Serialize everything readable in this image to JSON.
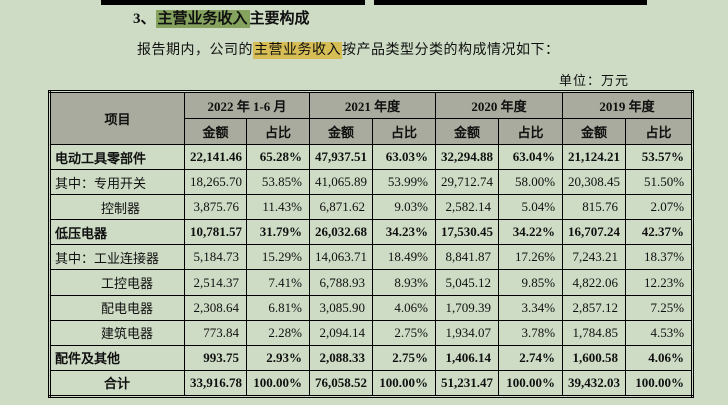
{
  "page": {
    "bg_color": "#cedcc5",
    "header_bg_color": "#a8ab9d",
    "green_highlight_color": "#85a35e",
    "yellow_highlight_color": "#d6bd55"
  },
  "heading": {
    "number": "3、",
    "highlight": "主营业务收入",
    "rest": "主要构成"
  },
  "intro": {
    "before": "报告期内，公司的",
    "highlight": "主营业务收入",
    "after": "按产品类型分类的构成情况如下："
  },
  "unit_label": "单位：万元",
  "table": {
    "header": {
      "item": "项目",
      "periods": [
        "2022 年 1-6 月",
        "2021 年度",
        "2020 年度",
        "2019 年度"
      ],
      "amount_label": "金额",
      "ratio_label": "占比"
    },
    "rows": [
      {
        "label": "电动工具零部件",
        "style": "bold",
        "indent": "none",
        "values": [
          "22,141.46",
          "65.28%",
          "47,937.51",
          "63.03%",
          "32,294.88",
          "63.04%",
          "21,124.21",
          "53.57%"
        ]
      },
      {
        "label": "其中：专用开关",
        "style": "plain",
        "indent": "none",
        "values": [
          "18,265.70",
          "53.85%",
          "41,065.89",
          "53.99%",
          "29,712.74",
          "58.00%",
          "20,308.45",
          "51.50%"
        ]
      },
      {
        "label": "控制器",
        "style": "plain",
        "indent": "sub2",
        "values": [
          "3,875.76",
          "11.43%",
          "6,871.62",
          "9.03%",
          "2,582.14",
          "5.04%",
          "815.76",
          "2.07%"
        ]
      },
      {
        "label": "低压电器",
        "style": "bold",
        "indent": "none",
        "values": [
          "10,781.57",
          "31.79%",
          "26,032.68",
          "34.23%",
          "17,530.45",
          "34.22%",
          "16,707.24",
          "42.37%"
        ]
      },
      {
        "label": "其中：工业连接器",
        "style": "plain",
        "indent": "none",
        "values": [
          "5,184.73",
          "15.29%",
          "14,063.71",
          "18.49%",
          "8,841.87",
          "17.26%",
          "7,243.21",
          "18.37%"
        ]
      },
      {
        "label": "工控电器",
        "style": "plain",
        "indent": "sub2",
        "values": [
          "2,514.37",
          "7.41%",
          "6,788.93",
          "8.93%",
          "5,045.12",
          "9.85%",
          "4,822.06",
          "12.23%"
        ]
      },
      {
        "label": "配电电器",
        "style": "plain",
        "indent": "sub2",
        "values": [
          "2,308.64",
          "6.81%",
          "3,085.90",
          "4.06%",
          "1,709.39",
          "3.34%",
          "2,857.12",
          "7.25%"
        ]
      },
      {
        "label": "建筑电器",
        "style": "plain",
        "indent": "sub2",
        "values": [
          "773.84",
          "2.28%",
          "2,094.14",
          "2.75%",
          "1,934.07",
          "3.78%",
          "1,784.85",
          "4.53%"
        ]
      },
      {
        "label": "配件及其他",
        "style": "bold",
        "indent": "none",
        "values": [
          "993.75",
          "2.93%",
          "2,088.33",
          "2.75%",
          "1,406.14",
          "2.74%",
          "1,600.58",
          "4.06%"
        ]
      },
      {
        "label": "合计",
        "style": "total",
        "indent": "none",
        "values": [
          "33,916.78",
          "100.00%",
          "76,058.52",
          "100.00%",
          "51,231.47",
          "100.00%",
          "39,432.03",
          "100.00%"
        ]
      }
    ]
  }
}
